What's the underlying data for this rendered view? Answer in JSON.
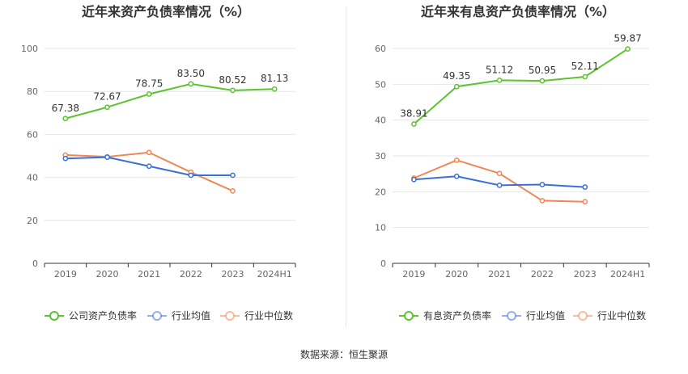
{
  "source_text": "数据来源：恒生聚源",
  "colors": {
    "company": "#5cc42f",
    "industry_avg": "#3b6fd8",
    "industry_median": "#f08755",
    "grid": "#e6e6e6",
    "axis": "#333333",
    "divider": "#e8e8e8"
  },
  "chart_data": [
    {
      "type": "line",
      "title": "近年来资产负债率情况（%）",
      "categories": [
        "2019",
        "2020",
        "2021",
        "2022",
        "2023",
        "2024H1"
      ],
      "ylim": [
        0,
        100
      ],
      "yticks": [
        0,
        20,
        40,
        60,
        80,
        100
      ],
      "grid": true,
      "legend_position": "bottom",
      "series": [
        {
          "name": "公司资产负债率",
          "key": "company",
          "labels": true,
          "values": [
            67.38,
            72.67,
            78.75,
            83.5,
            80.52,
            81.13
          ]
        },
        {
          "name": "行业均值",
          "key": "industry_avg",
          "labels": false,
          "values": [
            48.8,
            49.4,
            45.2,
            41,
            41,
            null
          ]
        },
        {
          "name": "行业中位数",
          "key": "industry_median",
          "labels": false,
          "values": [
            50.4,
            49.6,
            51.6,
            42.4,
            33.7,
            null
          ]
        }
      ],
      "data_labels": [
        "67.38",
        "72.67",
        "78.75",
        "83.50",
        "80.52",
        "81.13"
      ]
    },
    {
      "type": "line",
      "title": "近年来有息资产负债率情况（%）",
      "categories": [
        "2019",
        "2020",
        "2021",
        "2022",
        "2023",
        "2024H1"
      ],
      "ylim": [
        0,
        60
      ],
      "yticks": [
        0,
        10,
        20,
        30,
        40,
        50,
        60
      ],
      "grid": true,
      "legend_position": "bottom",
      "series": [
        {
          "name": "有息资产负债率",
          "key": "company",
          "labels": true,
          "values": [
            38.91,
            49.35,
            51.12,
            50.95,
            52.11,
            59.87
          ]
        },
        {
          "name": "行业均值",
          "key": "industry_avg",
          "labels": false,
          "values": [
            23.4,
            24.3,
            21.8,
            22,
            21.3,
            null
          ]
        },
        {
          "name": "行业中位数",
          "key": "industry_median",
          "labels": false,
          "values": [
            23.8,
            28.8,
            25.1,
            17.5,
            17.2,
            null
          ]
        }
      ],
      "data_labels": [
        "38.91",
        "49.35",
        "51.12",
        "50.95",
        "52.11",
        "59.87"
      ]
    }
  ]
}
